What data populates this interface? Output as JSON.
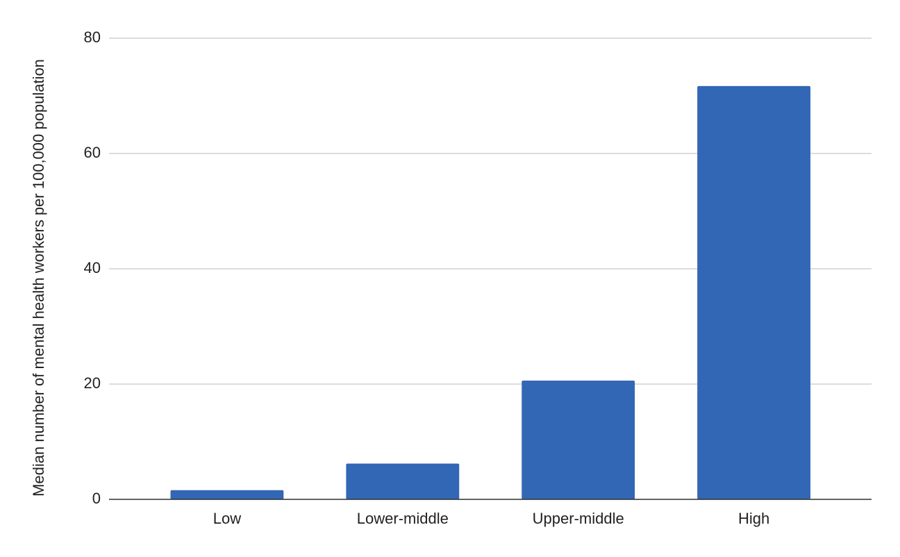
{
  "chart_data": {
    "type": "bar",
    "y_label": "Median number of mental health workers per 100,000 population",
    "categories": [
      "Low",
      "Lower-middle",
      "Upper-middle",
      "High"
    ],
    "values": [
      1.6,
      6.2,
      20.6,
      71.7
    ],
    "color": "#3267b5",
    "ylim": [
      0,
      80
    ],
    "yticks": [
      0,
      20,
      40,
      60,
      80
    ],
    "grid": true
  }
}
